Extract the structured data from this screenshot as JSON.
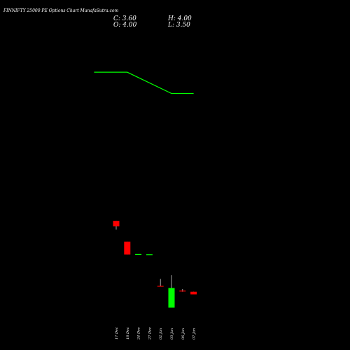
{
  "chart_data": {
    "type": "candlestick",
    "title": "FINNIFTY 25000 PE Options Chart MunafaSutra.com",
    "ohlc_readout": {
      "c_label": "C: 3.60",
      "h_label": "H: 4.00",
      "o_label": "O: 4.00",
      "l_label": "L: 3.50"
    },
    "categories": [
      "17 Dec",
      "18 Dec",
      "24 Dec",
      "27 Dec",
      "02 Jan",
      "03 Jan",
      "06 Jan",
      "07 Jan"
    ],
    "candles": [
      {
        "date": "17 Dec",
        "open": 9.0,
        "high": 9.0,
        "low": 7.4,
        "close": 8.0,
        "color": "#ff0000"
      },
      {
        "date": "18 Dec",
        "open": 5.1,
        "high": 5.1,
        "low": 2.7,
        "close": 2.7,
        "color": "#ff0000"
      },
      {
        "date": "24 Dec",
        "open": 2.7,
        "high": 2.7,
        "low": 2.7,
        "close": 2.8,
        "color": "#00ff00"
      },
      {
        "date": "27 Dec",
        "open": 2.7,
        "high": 2.7,
        "low": 2.7,
        "close": 2.75,
        "color": "#00ff00"
      },
      {
        "date": "02 Jan",
        "open": -3.2,
        "high": -1.9,
        "low": -3.3,
        "close": -3.3,
        "color": "#ff0000"
      },
      {
        "date": "03 Jan",
        "open": -7.3,
        "high": -1.2,
        "low": -7.3,
        "close": -3.6,
        "color": "#00ff00"
      },
      {
        "date": "06 Jan",
        "open": -4.1,
        "high": -3.8,
        "low": -4.3,
        "close": -4.2,
        "color": "#ff0000"
      },
      {
        "date": "07 Jan",
        "open": -4.3,
        "high": -4.3,
        "low": -4.8,
        "close": -4.8,
        "color": "#ff0000"
      }
    ],
    "line_series": {
      "color": "#00ff00",
      "points": [
        [
          -2,
          37.0
        ],
        [
          1,
          37.0
        ],
        [
          5,
          33.0
        ],
        [
          7,
          33.0
        ]
      ]
    },
    "ylim": [
      -10,
      44
    ],
    "colors": {
      "background": "#000000",
      "bull": "#00ff00",
      "bear": "#ff0000",
      "text": "#ffffff"
    }
  }
}
